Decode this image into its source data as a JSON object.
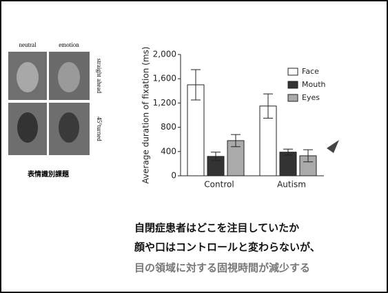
{
  "stimuli": {
    "col_labels": [
      "neutral",
      "emotion"
    ],
    "row_labels": [
      "straight ahead",
      "45°turned"
    ],
    "caption": "表情識別課題"
  },
  "chart_data": {
    "type": "bar",
    "y_label": "Average duration of fixation (ms)",
    "categories": [
      "Control",
      "Autism"
    ],
    "series": [
      {
        "name": "Face",
        "color": "#ffffff",
        "values": [
          1500,
          1150
        ],
        "errors": [
          250,
          200
        ]
      },
      {
        "name": "Mouth",
        "color": "#333333",
        "values": [
          320,
          390
        ],
        "errors": [
          70,
          50
        ]
      },
      {
        "name": "Eyes",
        "color": "#aaaaaa",
        "values": [
          580,
          330
        ],
        "errors": [
          100,
          100
        ]
      }
    ],
    "ylim": [
      0,
      2000
    ],
    "yticks": [
      0,
      400,
      800,
      {
        "value": 1200,
        "label": "1,200"
      },
      {
        "value": 1600,
        "label": "1,600"
      },
      {
        "value": 2000,
        "label": "2,000"
      }
    ]
  },
  "notes": [
    "自閉症患者はどこを注目していたか",
    "顔や口はコントロールと変わらないが、",
    "目の領域に対する固視時間が減少する"
  ]
}
